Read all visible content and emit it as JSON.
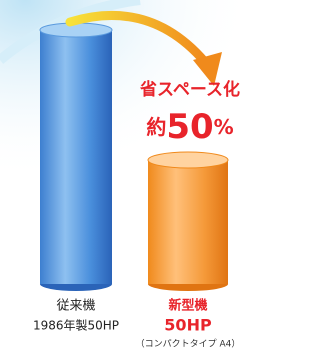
{
  "headline": "省スペース化",
  "reduction": {
    "prefix": "約",
    "number": 50,
    "unit": "%"
  },
  "products": [
    {
      "name": "従来機",
      "detail": "1986年製50HP"
    },
    {
      "name": "新型機",
      "detail": "50HP",
      "note": "（コンパクトタイプ A4）"
    }
  ]
}
